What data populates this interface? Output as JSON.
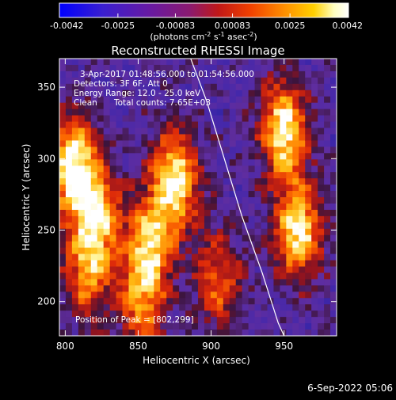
{
  "colorbar": {
    "tick_labels": [
      "-0.0042",
      "-0.0025",
      "-0.00083",
      "0.00083",
      "0.0025",
      "0.0042"
    ],
    "tick_values": [
      -0.0042,
      -0.0025,
      -0.00083,
      0.00083,
      0.0025,
      0.0042
    ],
    "range": [
      -0.0042,
      0.0042
    ],
    "unit_main": "(photons cm",
    "unit_exp1": "-2",
    "unit_mid": " s",
    "unit_exp2": "-1",
    "unit_mid2": " asec",
    "unit_exp3": "-2",
    "unit_close": ")",
    "colors": [
      "#0000ff",
      "#3a1fd0",
      "#6a1aa0",
      "#8a1a70",
      "#c01818",
      "#f04000",
      "#ff9000",
      "#ffd000",
      "#ffffc0",
      "#ffffff"
    ]
  },
  "chart_data": {
    "type": "heatmap",
    "title": "Reconstructed RHESSI Image",
    "xlabel": "Heliocentric X (arcsec)",
    "ylabel": "Heliocentric Y (arcsec)",
    "xlim": [
      796,
      986
    ],
    "ylim": [
      176,
      370
    ],
    "x_ticks": [
      800,
      850,
      900,
      950
    ],
    "y_ticks": [
      200,
      250,
      300,
      350
    ],
    "x_tick_labels": [
      "800",
      "850",
      "900",
      "950"
    ],
    "y_tick_labels": [
      "200",
      "250",
      "300",
      "350"
    ],
    "annotations": {
      "time_range": "3-Apr-2017 01:48:56.000 to 01:54:56.000",
      "detectors": "Detectors: 3F 6F, Att 0",
      "energy": "Energy Range: 12.0 - 25.0 keV",
      "method": "Clean",
      "counts": "Total counts: 7.65E+03",
      "peak": "Position of Peak = [802,299]"
    },
    "peak": [
      802,
      299
    ],
    "limb_curve": [
      [
        886,
        370
      ],
      [
        897,
        340
      ],
      [
        909,
        300
      ],
      [
        921,
        260
      ],
      [
        935,
        220
      ],
      [
        946,
        185
      ],
      [
        950,
        176
      ]
    ],
    "bright_regions": [
      {
        "x": 805,
        "y": 295,
        "peak": 1.0
      },
      {
        "x": 822,
        "y": 262,
        "peak": 0.8
      },
      {
        "x": 815,
        "y": 220,
        "peak": 0.6
      },
      {
        "x": 875,
        "y": 285,
        "peak": 0.95
      },
      {
        "x": 858,
        "y": 240,
        "peak": 0.75
      },
      {
        "x": 950,
        "y": 320,
        "peak": 0.95
      },
      {
        "x": 960,
        "y": 250,
        "peak": 0.9
      },
      {
        "x": 905,
        "y": 215,
        "peak": 0.55
      },
      {
        "x": 852,
        "y": 200,
        "peak": 0.6
      }
    ]
  },
  "footer": {
    "timestamp": "6-Sep-2022 05:06"
  }
}
